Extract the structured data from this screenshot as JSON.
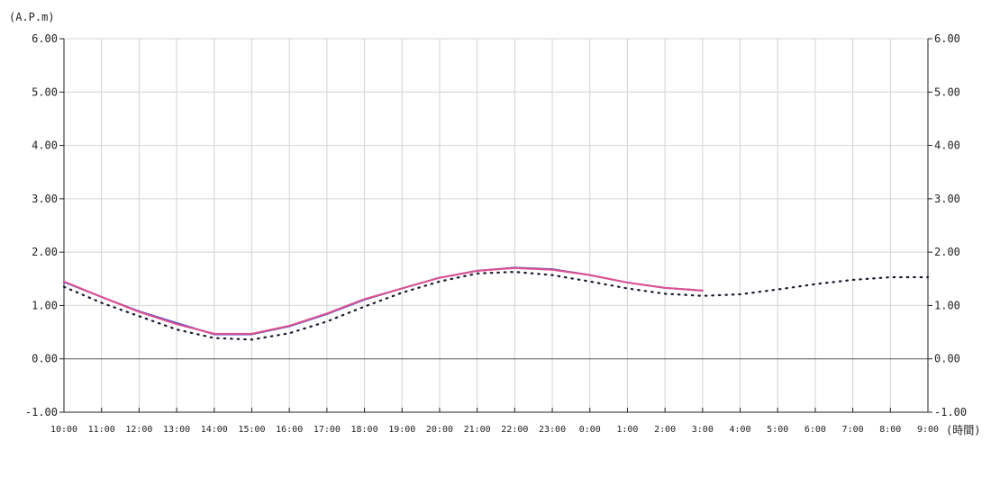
{
  "chart_data": {
    "type": "line",
    "ylabel": "(A.P.m)",
    "xlabel": "(時間)",
    "ylim": [
      -1.0,
      6.0
    ],
    "y_ticks": [
      "6.00",
      "5.00",
      "4.00",
      "3.00",
      "2.00",
      "1.00",
      "0.00",
      "-1.00"
    ],
    "categories": [
      "10:00",
      "11:00",
      "12:00",
      "13:00",
      "14:00",
      "15:00",
      "16:00",
      "17:00",
      "18:00",
      "19:00",
      "20:00",
      "21:00",
      "22:00",
      "23:00",
      "0:00",
      "1:00",
      "2:00",
      "3:00",
      "4:00",
      "5:00",
      "6:00",
      "7:00",
      "8:00",
      "9:00"
    ],
    "grid": true,
    "series": [
      {
        "style": "dotted",
        "color": "#1a1a2e",
        "values": [
          1.35,
          1.05,
          0.8,
          0.55,
          0.39,
          0.36,
          0.48,
          0.7,
          0.98,
          1.24,
          1.45,
          1.6,
          1.63,
          1.57,
          1.45,
          1.32,
          1.22,
          1.18,
          1.21,
          1.3,
          1.4,
          1.48,
          1.53,
          1.53
        ]
      },
      {
        "style": "solid",
        "color": "#4a4fc4",
        "values": [
          1.44,
          1.16,
          0.89,
          0.67,
          0.46,
          0.46,
          0.61,
          0.84,
          1.11,
          1.32,
          1.52,
          1.65,
          1.71,
          1.68,
          1.57,
          1.43,
          1.33,
          1.28,
          null,
          null,
          null,
          null,
          null,
          null
        ]
      },
      {
        "style": "solid",
        "color": "#e0508f",
        "values": [
          1.45,
          1.16,
          0.88,
          0.65,
          0.47,
          0.47,
          0.62,
          0.85,
          1.12,
          1.32,
          1.52,
          1.65,
          1.7,
          1.67,
          1.57,
          1.43,
          1.33,
          1.28,
          null,
          null,
          null,
          null,
          null,
          null
        ]
      }
    ]
  }
}
